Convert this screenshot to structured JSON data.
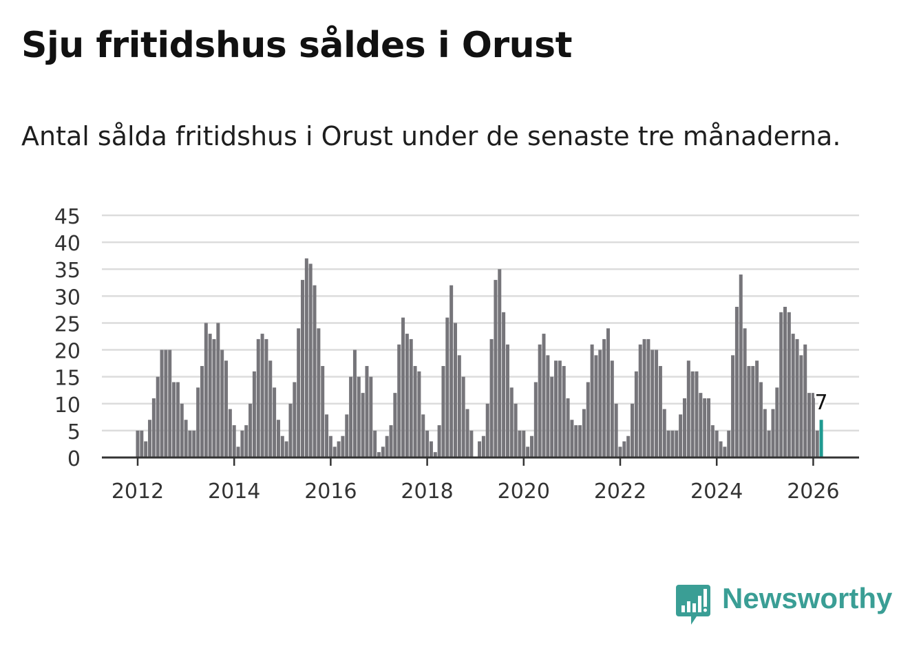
{
  "title": "Sju fritidshus såldes i Orust",
  "subtitle": "Antal sålda fritidshus i Orust under de senaste tre månaderna.",
  "brand": {
    "name": "Newsworthy",
    "color": "#3a9e95",
    "icon": "newsworthy-logo-icon"
  },
  "colors": {
    "bar": "#76757a",
    "highlight": "#1f9a91",
    "grid": "#dcdcdc",
    "axis": "#333333"
  },
  "chart_data": {
    "type": "bar",
    "x_start": "2012-01",
    "interval": "month",
    "ylim": [
      0,
      45
    ],
    "yticks": [
      0,
      5,
      10,
      15,
      20,
      25,
      30,
      35,
      40,
      45
    ],
    "xticks": [
      "2012",
      "2014",
      "2016",
      "2018",
      "2020",
      "2022",
      "2024",
      "2026"
    ],
    "grid": true,
    "highlight_label": "7",
    "values": [
      5,
      5,
      3,
      7,
      11,
      15,
      20,
      20,
      20,
      14,
      14,
      10,
      7,
      5,
      5,
      13,
      17,
      25,
      23,
      22,
      25,
      20,
      18,
      9,
      6,
      2,
      5,
      6,
      10,
      16,
      22,
      23,
      22,
      18,
      13,
      7,
      4,
      3,
      10,
      14,
      24,
      33,
      37,
      36,
      32,
      24,
      17,
      8,
      4,
      2,
      3,
      4,
      8,
      15,
      20,
      15,
      12,
      17,
      15,
      5,
      1,
      2,
      4,
      6,
      12,
      21,
      26,
      23,
      22,
      17,
      16,
      8,
      5,
      3,
      1,
      6,
      17,
      26,
      32,
      25,
      19,
      15,
      9,
      5,
      0,
      3,
      4,
      10,
      22,
      33,
      35,
      27,
      21,
      13,
      10,
      5,
      5,
      2,
      4,
      14,
      21,
      23,
      19,
      15,
      18,
      18,
      17,
      11,
      7,
      6,
      6,
      9,
      14,
      21,
      19,
      20,
      22,
      24,
      18,
      10,
      2,
      3,
      4,
      10,
      16,
      21,
      22,
      22,
      20,
      20,
      17,
      9,
      5,
      5,
      5,
      8,
      11,
      18,
      16,
      16,
      12,
      11,
      11,
      6,
      5,
      3,
      2,
      5,
      19,
      28,
      34,
      24,
      17,
      17,
      18,
      14,
      9,
      5,
      9,
      13,
      27,
      28,
      27,
      23,
      22,
      19,
      21,
      12,
      12,
      5,
      7
    ]
  }
}
